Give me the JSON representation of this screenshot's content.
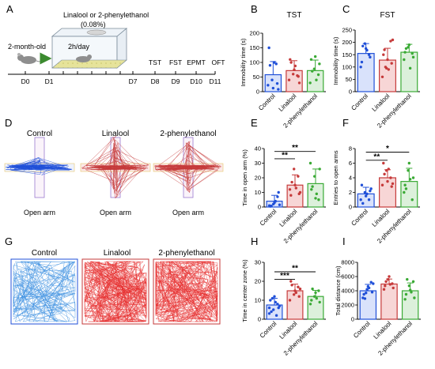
{
  "colors": {
    "control": "#1f4fd8",
    "linalool": "#c63a3a",
    "phenyl": "#3aaa35",
    "control_fill": "#d9e2fb",
    "linalool_fill": "#f7d6d6",
    "phenyl_fill": "#dcf0db"
  },
  "panel_letters": [
    "A",
    "B",
    "C",
    "D",
    "E",
    "F",
    "G",
    "H",
    "I"
  ],
  "panel_a": {
    "mouse_label": "2-month-old",
    "cage_label": "Linalool or 2-phenylethanol",
    "concentration": "(0.08%)",
    "schedule": "2h/day",
    "days": [
      "D0",
      "D1",
      "D7",
      "D8",
      "D9",
      "D10",
      "D11"
    ],
    "tests": [
      "TST",
      "FST",
      "EPMT",
      "OFT"
    ]
  },
  "group_names": [
    "Control",
    "Linalool",
    "2-phenylethanol"
  ],
  "open_arm_label": "Open arm",
  "chart_data": [
    {
      "panel": "B",
      "type": "bar",
      "title": "TST",
      "ylabel": "Immobility time (s)",
      "categories": [
        "Control",
        "Linalool",
        "2-phenylethanol"
      ],
      "values": [
        58,
        72,
        72
      ],
      "errors": [
        45,
        34,
        36
      ],
      "points": [
        [
          22,
          40,
          95,
          150,
          12,
          28,
          90,
          100,
          8
        ],
        [
          40,
          60,
          55,
          110,
          75,
          52,
          100,
          88,
          30
        ],
        [
          30,
          78,
          58,
          110,
          120,
          95,
          70,
          40
        ]
      ],
      "ylim": [
        0,
        200
      ],
      "yticks": [
        0,
        50,
        100,
        150,
        200
      ],
      "significance": []
    },
    {
      "panel": "C",
      "type": "bar",
      "title": "FST",
      "ylabel": "Immobility time (s)",
      "categories": [
        "Control",
        "Linalool",
        "2-phenylethanol"
      ],
      "values": [
        155,
        128,
        160
      ],
      "errors": [
        40,
        48,
        32
      ],
      "points": [
        [
          100,
          195,
          150,
          120,
          175,
          140,
          185,
          168
        ],
        [
          60,
          95,
          205,
          150,
          130,
          115,
          170,
          90,
          210,
          100
        ],
        [
          130,
          180,
          155,
          160,
          190,
          140,
          175,
          95
        ]
      ],
      "ylim": [
        0,
        250
      ],
      "yticks": [
        0,
        50,
        100,
        150,
        200,
        250
      ],
      "significance": []
    },
    {
      "panel": "E",
      "type": "bar",
      "ylabel": "Time in open arm (%)",
      "categories": [
        "Control",
        "Linalool",
        "2-phenylethanol"
      ],
      "values": [
        4,
        15,
        16
      ],
      "errors": [
        4,
        7,
        10
      ],
      "points": [
        [
          1,
          2,
          7,
          0.5,
          3,
          10,
          0.8,
          4,
          1.5
        ],
        [
          12,
          26,
          21,
          8,
          15,
          9,
          17,
          13,
          10
        ],
        [
          30,
          21,
          5,
          12,
          6,
          26,
          14,
          9
        ]
      ],
      "ylim": [
        0,
        40
      ],
      "yticks": [
        0,
        10,
        20,
        30,
        40
      ],
      "significance": [
        {
          "from": 0,
          "to": 1,
          "y": 33,
          "label": "**"
        },
        {
          "from": 0,
          "to": 2,
          "y": 38,
          "label": "**"
        }
      ]
    },
    {
      "panel": "F",
      "type": "bar",
      "ylabel": "Entries to open arms",
      "categories": [
        "Control",
        "Linalool",
        "2-phenylethanol"
      ],
      "values": [
        1.8,
        4.0,
        3.5
      ],
      "errors": [
        0.9,
        1.1,
        1.8
      ],
      "points": [
        [
          1,
          2,
          1,
          3,
          1.5,
          2.2,
          0.5,
          1.8,
          2.5
        ],
        [
          3,
          5,
          4,
          6,
          3.5,
          2.8,
          4.5,
          5.2,
          3.2
        ],
        [
          2,
          5,
          1,
          3,
          6,
          4,
          2.5,
          3.8
        ]
      ],
      "ylim": [
        0,
        8
      ],
      "yticks": [
        0,
        2,
        4,
        6,
        8
      ],
      "significance": [
        {
          "from": 0,
          "to": 1,
          "y": 6.4,
          "label": "**"
        },
        {
          "from": 0,
          "to": 2,
          "y": 7.5,
          "label": "*"
        }
      ]
    },
    {
      "panel": "H",
      "type": "bar",
      "ylabel": "Time in center zone (%)",
      "categories": [
        "Control",
        "Linalool",
        "2-phenylethanol"
      ],
      "values": [
        7.5,
        15,
        12
      ],
      "errors": [
        3.5,
        3.5,
        3.2
      ],
      "points": [
        [
          3,
          5,
          8,
          10,
          12,
          6,
          4,
          9,
          7,
          11,
          2,
          6
        ],
        [
          10,
          13,
          17,
          20,
          15,
          12,
          18,
          14,
          16
        ],
        [
          8,
          12,
          15,
          10,
          14,
          9,
          16,
          11
        ]
      ],
      "ylim": [
        0,
        30
      ],
      "yticks": [
        0,
        10,
        20,
        30
      ],
      "significance": [
        {
          "from": 0,
          "to": 1,
          "y": 21,
          "label": "***"
        },
        {
          "from": 0,
          "to": 2,
          "y": 25,
          "label": "**"
        }
      ]
    },
    {
      "panel": "I",
      "type": "bar",
      "ylabel": "Total distance (cm)",
      "categories": [
        "Control",
        "Linalool",
        "2-phenylethanol"
      ],
      "values": [
        4000,
        4950,
        4000
      ],
      "errors": [
        900,
        700,
        1100
      ],
      "points": [
        [
          3000,
          4200,
          5200,
          3500,
          4600,
          3800,
          2900,
          4400,
          5000,
          3700
        ],
        [
          4200,
          5600,
          5000,
          4700,
          6000,
          4400,
          5300,
          4900
        ],
        [
          2800,
          4700,
          5300,
          3500,
          4100,
          3000,
          5600,
          3800
        ]
      ],
      "ylim": [
        0,
        8000
      ],
      "yticks": [
        0,
        2000,
        4000,
        6000,
        8000
      ],
      "significance": []
    }
  ]
}
